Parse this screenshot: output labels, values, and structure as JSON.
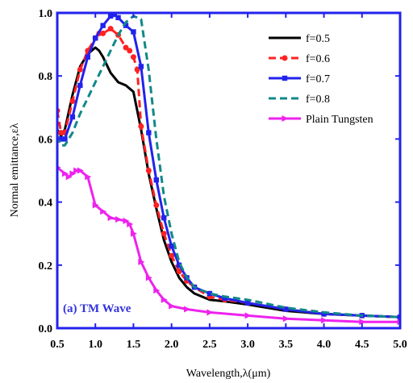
{
  "chart_data": {
    "type": "line",
    "title": "",
    "xlabel": "Wavelength,λ(μm)",
    "ylabel": "Normal emittance,ελ",
    "xlim": [
      0.5,
      5.0
    ],
    "ylim": [
      0.0,
      1.0
    ],
    "xticks": [
      "0.5",
      "1.0",
      "1.5",
      "2.0",
      "2.5",
      "3.0",
      "3.5",
      "4.0",
      "4.5",
      "5.0"
    ],
    "yticks": [
      "0.0",
      "0.2",
      "0.4",
      "0.6",
      "0.8",
      "1.0"
    ],
    "grid": false,
    "legend_position": "top-right",
    "annotation": {
      "text": "(a) TM Wave",
      "color": "#3333dd"
    },
    "frame_color": "#2222ee",
    "series": [
      {
        "name": "f=0.5",
        "color": "#000000",
        "dash": "solid",
        "marker": "none",
        "x": [
          0.5,
          0.55,
          0.6,
          0.7,
          0.8,
          0.9,
          1.0,
          1.05,
          1.1,
          1.2,
          1.3,
          1.4,
          1.5,
          1.6,
          1.7,
          1.8,
          1.9,
          2.0,
          2.1,
          2.2,
          2.3,
          2.5,
          2.7,
          3.0,
          3.5,
          4.0,
          4.5,
          5.0
        ],
        "y": [
          0.63,
          0.61,
          0.63,
          0.74,
          0.83,
          0.87,
          0.89,
          0.88,
          0.86,
          0.81,
          0.78,
          0.77,
          0.75,
          0.63,
          0.49,
          0.38,
          0.28,
          0.21,
          0.16,
          0.13,
          0.11,
          0.09,
          0.085,
          0.075,
          0.055,
          0.045,
          0.04,
          0.035
        ]
      },
      {
        "name": "f=0.6",
        "color": "#ff2222",
        "dash": "dashed",
        "marker": "circle",
        "x": [
          0.5,
          0.55,
          0.6,
          0.7,
          0.8,
          0.9,
          1.0,
          1.05,
          1.1,
          1.2,
          1.3,
          1.4,
          1.45,
          1.5,
          1.55,
          1.6,
          1.7,
          1.8,
          1.9,
          2.0,
          2.1,
          2.2,
          2.3,
          2.5,
          2.7,
          3.0,
          3.5,
          4.0,
          4.5,
          5.0
        ],
        "y": [
          0.69,
          0.62,
          0.62,
          0.72,
          0.82,
          0.88,
          0.92,
          0.935,
          0.935,
          0.95,
          0.93,
          0.89,
          0.88,
          0.86,
          0.82,
          0.64,
          0.5,
          0.39,
          0.3,
          0.23,
          0.18,
          0.15,
          0.13,
          0.1,
          0.09,
          0.08,
          0.06,
          0.045,
          0.04,
          0.035
        ]
      },
      {
        "name": "f=0.7",
        "color": "#2222ee",
        "dash": "solid",
        "marker": "square",
        "x": [
          0.5,
          0.55,
          0.6,
          0.7,
          0.8,
          0.9,
          1.0,
          1.1,
          1.2,
          1.25,
          1.3,
          1.4,
          1.5,
          1.6,
          1.7,
          1.8,
          1.9,
          2.0,
          2.1,
          2.2,
          2.3,
          2.5,
          2.7,
          3.0,
          3.5,
          4.0,
          4.5,
          5.0
        ],
        "y": [
          0.6,
          0.6,
          0.6,
          0.67,
          0.77,
          0.86,
          0.92,
          0.96,
          0.99,
          0.995,
          0.985,
          0.96,
          0.94,
          0.83,
          0.62,
          0.47,
          0.35,
          0.26,
          0.2,
          0.16,
          0.13,
          0.11,
          0.095,
          0.08,
          0.06,
          0.045,
          0.04,
          0.035
        ]
      },
      {
        "name": "f=0.8",
        "color": "#118888",
        "dash": "dashed",
        "marker": "none",
        "x": [
          0.5,
          0.55,
          0.6,
          0.7,
          0.8,
          0.9,
          1.0,
          1.1,
          1.2,
          1.3,
          1.4,
          1.5,
          1.6,
          1.7,
          1.8,
          1.9,
          2.0,
          2.1,
          2.2,
          2.3,
          2.5,
          2.7,
          3.0,
          3.5,
          4.0,
          4.5,
          5.0
        ],
        "y": [
          0.61,
          0.58,
          0.58,
          0.62,
          0.68,
          0.73,
          0.78,
          0.83,
          0.88,
          0.93,
          0.97,
          0.99,
          0.98,
          0.82,
          0.6,
          0.42,
          0.3,
          0.21,
          0.16,
          0.13,
          0.11,
          0.1,
          0.09,
          0.065,
          0.05,
          0.04,
          0.035
        ]
      },
      {
        "name": "Plain Tungsten",
        "color": "#ee22ee",
        "dash": "solid",
        "marker": "triangle-right",
        "x": [
          0.5,
          0.6,
          0.65,
          0.7,
          0.75,
          0.8,
          0.9,
          1.0,
          1.1,
          1.2,
          1.3,
          1.4,
          1.45,
          1.5,
          1.6,
          1.7,
          1.8,
          1.9,
          2.0,
          2.2,
          2.5,
          3.0,
          3.5,
          4.0,
          4.5,
          5.0
        ],
        "y": [
          0.51,
          0.49,
          0.48,
          0.49,
          0.5,
          0.5,
          0.48,
          0.39,
          0.37,
          0.35,
          0.345,
          0.34,
          0.33,
          0.3,
          0.21,
          0.16,
          0.12,
          0.09,
          0.07,
          0.06,
          0.05,
          0.04,
          0.03,
          0.025,
          0.02,
          0.02
        ]
      }
    ]
  }
}
